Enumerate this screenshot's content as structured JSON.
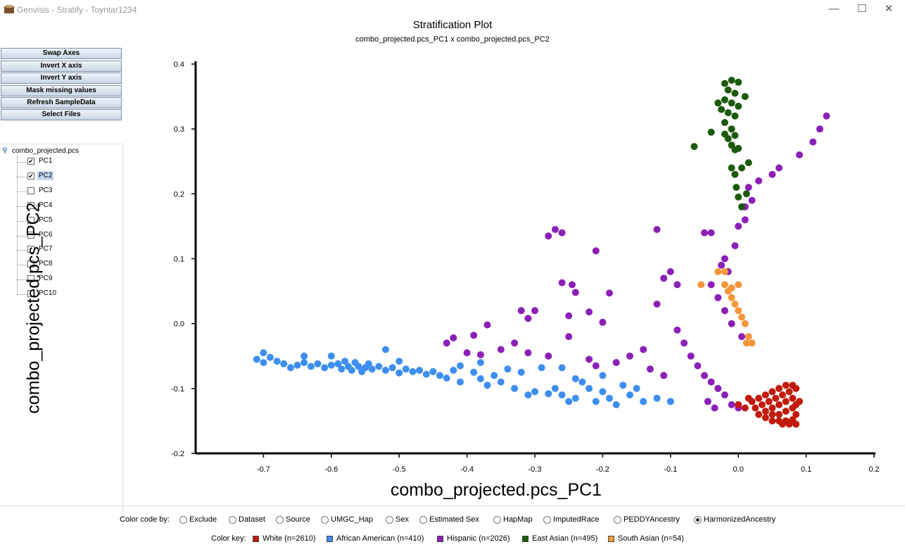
{
  "window": {
    "title": "Genvisis - Stratify - Toyntar1234",
    "minimize": "—",
    "maximize": "☐",
    "close": "✕"
  },
  "toolbar": {
    "buttons": [
      "Swap Axes",
      "Invert X axis",
      "Invert Y axis",
      "Mask missing values",
      "Refresh SampleData",
      "Select Files"
    ]
  },
  "tree": {
    "root": "combo_projected.pcs",
    "items": [
      {
        "label": "PC1",
        "checked": true,
        "selected": false
      },
      {
        "label": "PC2",
        "checked": true,
        "selected": true
      },
      {
        "label": "PC3",
        "checked": false,
        "selected": false
      },
      {
        "label": "PC4",
        "checked": false,
        "selected": false
      },
      {
        "label": "PC5",
        "checked": false,
        "selected": false
      },
      {
        "label": "PC6",
        "checked": false,
        "selected": false
      },
      {
        "label": "PC7",
        "checked": false,
        "selected": false
      },
      {
        "label": "PC8",
        "checked": false,
        "selected": false
      },
      {
        "label": "PC9",
        "checked": false,
        "selected": false
      },
      {
        "label": "PC10",
        "checked": false,
        "selected": false
      }
    ]
  },
  "chart_data": {
    "type": "scatter",
    "title": "Stratification Plot",
    "subtitle": "combo_projected.pcs_PC1 x combo_projected.pcs_PC2",
    "xlabel": "combo_projected.pcs_PC1",
    "ylabel": "combo_projected.pcs_PC2",
    "xlim": [
      -0.8,
      0.2
    ],
    "ylim": [
      -0.2,
      0.4
    ],
    "xticks": [
      "-0.7",
      "-0.6",
      "-0.5",
      "-0.4",
      "-0.3",
      "-0.2",
      "-0.1",
      "0.0",
      "0.1",
      "0.2"
    ],
    "yticks": [
      "0.4",
      "0.3",
      "0.2",
      "0.1",
      "0.0",
      "-0.1",
      "-0.2"
    ],
    "grid": false,
    "series": [
      {
        "name": "African American",
        "color": "#3d8ef0",
        "points": [
          [
            -0.71,
            -0.055
          ],
          [
            -0.7,
            -0.06
          ],
          [
            -0.69,
            -0.052
          ],
          [
            -0.68,
            -0.058
          ],
          [
            -0.67,
            -0.062
          ],
          [
            -0.66,
            -0.068
          ],
          [
            -0.65,
            -0.064
          ],
          [
            -0.64,
            -0.06
          ],
          [
            -0.63,
            -0.066
          ],
          [
            -0.62,
            -0.062
          ],
          [
            -0.61,
            -0.068
          ],
          [
            -0.6,
            -0.064
          ],
          [
            -0.59,
            -0.062
          ],
          [
            -0.585,
            -0.07
          ],
          [
            -0.58,
            -0.058
          ],
          [
            -0.575,
            -0.066
          ],
          [
            -0.57,
            -0.072
          ],
          [
            -0.565,
            -0.06
          ],
          [
            -0.56,
            -0.066
          ],
          [
            -0.555,
            -0.074
          ],
          [
            -0.55,
            -0.068
          ],
          [
            -0.545,
            -0.062
          ],
          [
            -0.54,
            -0.07
          ],
          [
            -0.53,
            -0.066
          ],
          [
            -0.52,
            -0.072
          ],
          [
            -0.51,
            -0.068
          ],
          [
            -0.5,
            -0.076
          ],
          [
            -0.49,
            -0.07
          ],
          [
            -0.48,
            -0.074
          ],
          [
            -0.47,
            -0.072
          ],
          [
            -0.46,
            -0.078
          ],
          [
            -0.45,
            -0.074
          ],
          [
            -0.44,
            -0.08
          ],
          [
            -0.43,
            -0.084
          ],
          [
            -0.52,
            -0.04
          ],
          [
            -0.5,
            -0.058
          ],
          [
            -0.6,
            -0.05
          ],
          [
            -0.64,
            -0.05
          ],
          [
            -0.7,
            -0.045
          ],
          [
            -0.42,
            -0.072
          ],
          [
            -0.41,
            -0.09
          ],
          [
            -0.39,
            -0.075
          ],
          [
            -0.38,
            -0.085
          ],
          [
            -0.37,
            -0.095
          ],
          [
            -0.36,
            -0.08
          ],
          [
            -0.35,
            -0.09
          ],
          [
            -0.34,
            -0.07
          ],
          [
            -0.33,
            -0.1
          ],
          [
            -0.32,
            -0.075
          ],
          [
            -0.31,
            -0.11
          ],
          [
            -0.3,
            -0.105
          ],
          [
            -0.29,
            -0.068
          ],
          [
            -0.28,
            -0.108
          ],
          [
            -0.27,
            -0.1
          ],
          [
            -0.26,
            -0.11
          ],
          [
            -0.25,
            -0.12
          ],
          [
            -0.24,
            -0.115
          ],
          [
            -0.23,
            -0.09
          ],
          [
            -0.22,
            -0.1
          ],
          [
            -0.21,
            -0.12
          ],
          [
            -0.2,
            -0.105
          ],
          [
            -0.19,
            -0.115
          ],
          [
            -0.18,
            -0.125
          ],
          [
            -0.17,
            -0.095
          ],
          [
            -0.16,
            -0.11
          ],
          [
            -0.15,
            -0.1
          ],
          [
            -0.14,
            -0.12
          ],
          [
            -0.12,
            -0.115
          ],
          [
            -0.1,
            -0.12
          ],
          [
            -0.26,
            -0.068
          ],
          [
            -0.24,
            -0.085
          ],
          [
            -0.2,
            -0.08
          ],
          [
            -0.38,
            -0.06
          ],
          [
            -0.41,
            -0.065
          ]
        ]
      },
      {
        "name": "Hispanic",
        "color": "#8c1fb8",
        "points": [
          [
            -0.27,
            0.145
          ],
          [
            -0.26,
            0.14
          ],
          [
            -0.28,
            0.135
          ],
          [
            -0.21,
            0.112
          ],
          [
            -0.12,
            0.145
          ],
          [
            -0.26,
            0.063
          ],
          [
            -0.245,
            0.06
          ],
          [
            -0.24,
            0.048
          ],
          [
            -0.19,
            0.047
          ],
          [
            -0.1,
            0.08
          ],
          [
            -0.11,
            0.07
          ],
          [
            -0.09,
            0.06
          ],
          [
            -0.12,
            0.03
          ],
          [
            -0.32,
            0.02
          ],
          [
            -0.3,
            0.02
          ],
          [
            -0.22,
            0.018
          ],
          [
            -0.25,
            0.012
          ],
          [
            -0.2,
            0.002
          ],
          [
            -0.31,
            0.008
          ],
          [
            -0.37,
            -0.002
          ],
          [
            -0.39,
            -0.018
          ],
          [
            -0.42,
            -0.022
          ],
          [
            -0.43,
            -0.03
          ],
          [
            -0.4,
            -0.045
          ],
          [
            -0.38,
            -0.048
          ],
          [
            -0.35,
            -0.04
          ],
          [
            -0.33,
            -0.03
          ],
          [
            -0.31,
            -0.045
          ],
          [
            -0.28,
            -0.05
          ],
          [
            -0.25,
            -0.02
          ],
          [
            -0.22,
            -0.055
          ],
          [
            -0.21,
            -0.065
          ],
          [
            -0.18,
            -0.06
          ],
          [
            -0.16,
            -0.05
          ],
          [
            -0.14,
            -0.04
          ],
          [
            -0.13,
            -0.07
          ],
          [
            -0.11,
            -0.08
          ],
          [
            -0.09,
            -0.01
          ],
          [
            -0.08,
            -0.03
          ],
          [
            -0.07,
            -0.05
          ],
          [
            -0.06,
            -0.065
          ],
          [
            -0.05,
            -0.08
          ],
          [
            -0.04,
            -0.09
          ],
          [
            -0.03,
            -0.1
          ],
          [
            -0.045,
            -0.12
          ],
          [
            -0.035,
            -0.13
          ],
          [
            -0.02,
            -0.11
          ],
          [
            -0.01,
            -0.125
          ],
          [
            0.0,
            -0.13
          ],
          [
            0.005,
            -0.02
          ],
          [
            -0.01,
            0.0
          ],
          [
            -0.02,
            0.02
          ],
          [
            -0.03,
            0.04
          ],
          [
            -0.04,
            0.06
          ],
          [
            -0.025,
            0.09
          ],
          [
            -0.02,
            0.1
          ],
          [
            -0.015,
            0.08
          ],
          [
            -0.005,
            0.12
          ],
          [
            0.0,
            0.15
          ],
          [
            0.01,
            0.16
          ],
          [
            0.01,
            0.18
          ],
          [
            0.02,
            0.19
          ],
          [
            0.015,
            0.21
          ],
          [
            0.03,
            0.22
          ],
          [
            0.05,
            0.23
          ],
          [
            0.06,
            0.24
          ],
          [
            0.09,
            0.26
          ],
          [
            0.11,
            0.28
          ],
          [
            0.12,
            0.3
          ],
          [
            0.13,
            0.32
          ],
          [
            -0.05,
            0.14
          ],
          [
            -0.04,
            0.14
          ]
        ]
      },
      {
        "name": "East Asian",
        "color": "#1c5a0b",
        "points": [
          [
            -0.02,
            0.37
          ],
          [
            -0.01,
            0.375
          ],
          [
            0.0,
            0.372
          ],
          [
            -0.015,
            0.36
          ],
          [
            -0.005,
            0.355
          ],
          [
            -0.02,
            0.345
          ],
          [
            -0.01,
            0.34
          ],
          [
            0.0,
            0.335
          ],
          [
            -0.015,
            0.325
          ],
          [
            -0.005,
            0.32
          ],
          [
            -0.02,
            0.31
          ],
          [
            -0.01,
            0.3
          ],
          [
            -0.005,
            0.29
          ],
          [
            -0.015,
            0.285
          ],
          [
            -0.02,
            0.292
          ],
          [
            -0.03,
            0.34
          ],
          [
            -0.025,
            0.33
          ],
          [
            0.01,
            0.35
          ],
          [
            -0.04,
            0.295
          ],
          [
            -0.065,
            0.273
          ],
          [
            -0.01,
            0.275
          ],
          [
            -0.005,
            0.268
          ],
          [
            0.0,
            0.27
          ],
          [
            -0.01,
            0.24
          ],
          [
            0.005,
            0.24
          ],
          [
            0.015,
            0.248
          ],
          [
            -0.005,
            0.23
          ],
          [
            -0.003,
            0.21
          ],
          [
            0.0,
            0.195
          ],
          [
            0.005,
            0.18
          ],
          [
            0.012,
            0.2
          ]
        ]
      },
      {
        "name": "South Asian",
        "color": "#f5963a",
        "points": [
          [
            -0.03,
            0.08
          ],
          [
            -0.02,
            0.08
          ],
          [
            -0.055,
            0.06
          ],
          [
            -0.02,
            0.06
          ],
          [
            -0.015,
            0.05
          ],
          [
            -0.01,
            0.04
          ],
          [
            -0.005,
            0.03
          ],
          [
            0.0,
            0.02
          ],
          [
            0.005,
            0.01
          ],
          [
            0.01,
            0.0
          ],
          [
            0.015,
            -0.02
          ],
          [
            0.02,
            -0.03
          ],
          [
            0.012,
            -0.03
          ],
          [
            -0.01,
            0.055
          ],
          [
            0.0,
            0.06
          ]
        ]
      },
      {
        "name": "White",
        "color": "#c21a0a",
        "points": [
          [
            0.02,
            -0.12
          ],
          [
            0.03,
            -0.115
          ],
          [
            0.04,
            -0.11
          ],
          [
            0.05,
            -0.105
          ],
          [
            0.06,
            -0.1
          ],
          [
            0.07,
            -0.095
          ],
          [
            0.08,
            -0.095
          ],
          [
            0.025,
            -0.13
          ],
          [
            0.035,
            -0.125
          ],
          [
            0.045,
            -0.12
          ],
          [
            0.055,
            -0.115
          ],
          [
            0.065,
            -0.11
          ],
          [
            0.075,
            -0.105
          ],
          [
            0.085,
            -0.1
          ],
          [
            0.03,
            -0.14
          ],
          [
            0.04,
            -0.135
          ],
          [
            0.05,
            -0.13
          ],
          [
            0.06,
            -0.125
          ],
          [
            0.07,
            -0.12
          ],
          [
            0.08,
            -0.115
          ],
          [
            0.085,
            -0.125
          ],
          [
            0.04,
            -0.145
          ],
          [
            0.05,
            -0.14
          ],
          [
            0.06,
            -0.14
          ],
          [
            0.07,
            -0.135
          ],
          [
            0.08,
            -0.13
          ],
          [
            0.085,
            -0.14
          ],
          [
            0.05,
            -0.15
          ],
          [
            0.06,
            -0.15
          ],
          [
            0.07,
            -0.15
          ],
          [
            0.08,
            -0.148
          ],
          [
            0.085,
            -0.155
          ],
          [
            0.065,
            -0.155
          ],
          [
            0.075,
            -0.155
          ],
          [
            0.01,
            -0.13
          ],
          [
            0.015,
            -0.115
          ],
          [
            0.0,
            -0.125
          ],
          [
            0.09,
            -0.12
          ]
        ]
      }
    ]
  },
  "color_by": {
    "caption": "Color code by:",
    "options": [
      "Exclude",
      "Dataset",
      "Source",
      "UMGC_Hap",
      "Sex",
      "Estimated Sex",
      "HapMap",
      "ImputedRace",
      "PEDDYAncestry",
      "HarmonizedAncestry"
    ],
    "selected": "HarmonizedAncestry"
  },
  "color_key": {
    "caption": "Color key:",
    "entries": [
      {
        "label": "White (n=2610)",
        "color": "#c21a0a"
      },
      {
        "label": "African American (n=410)",
        "color": "#3d8ef0"
      },
      {
        "label": "Hispanic (n=2026)",
        "color": "#8c1fb8"
      },
      {
        "label": "East Asian (n=495)",
        "color": "#1c5a0b"
      },
      {
        "label": "South Asian (n=54)",
        "color": "#f5963a"
      }
    ]
  }
}
